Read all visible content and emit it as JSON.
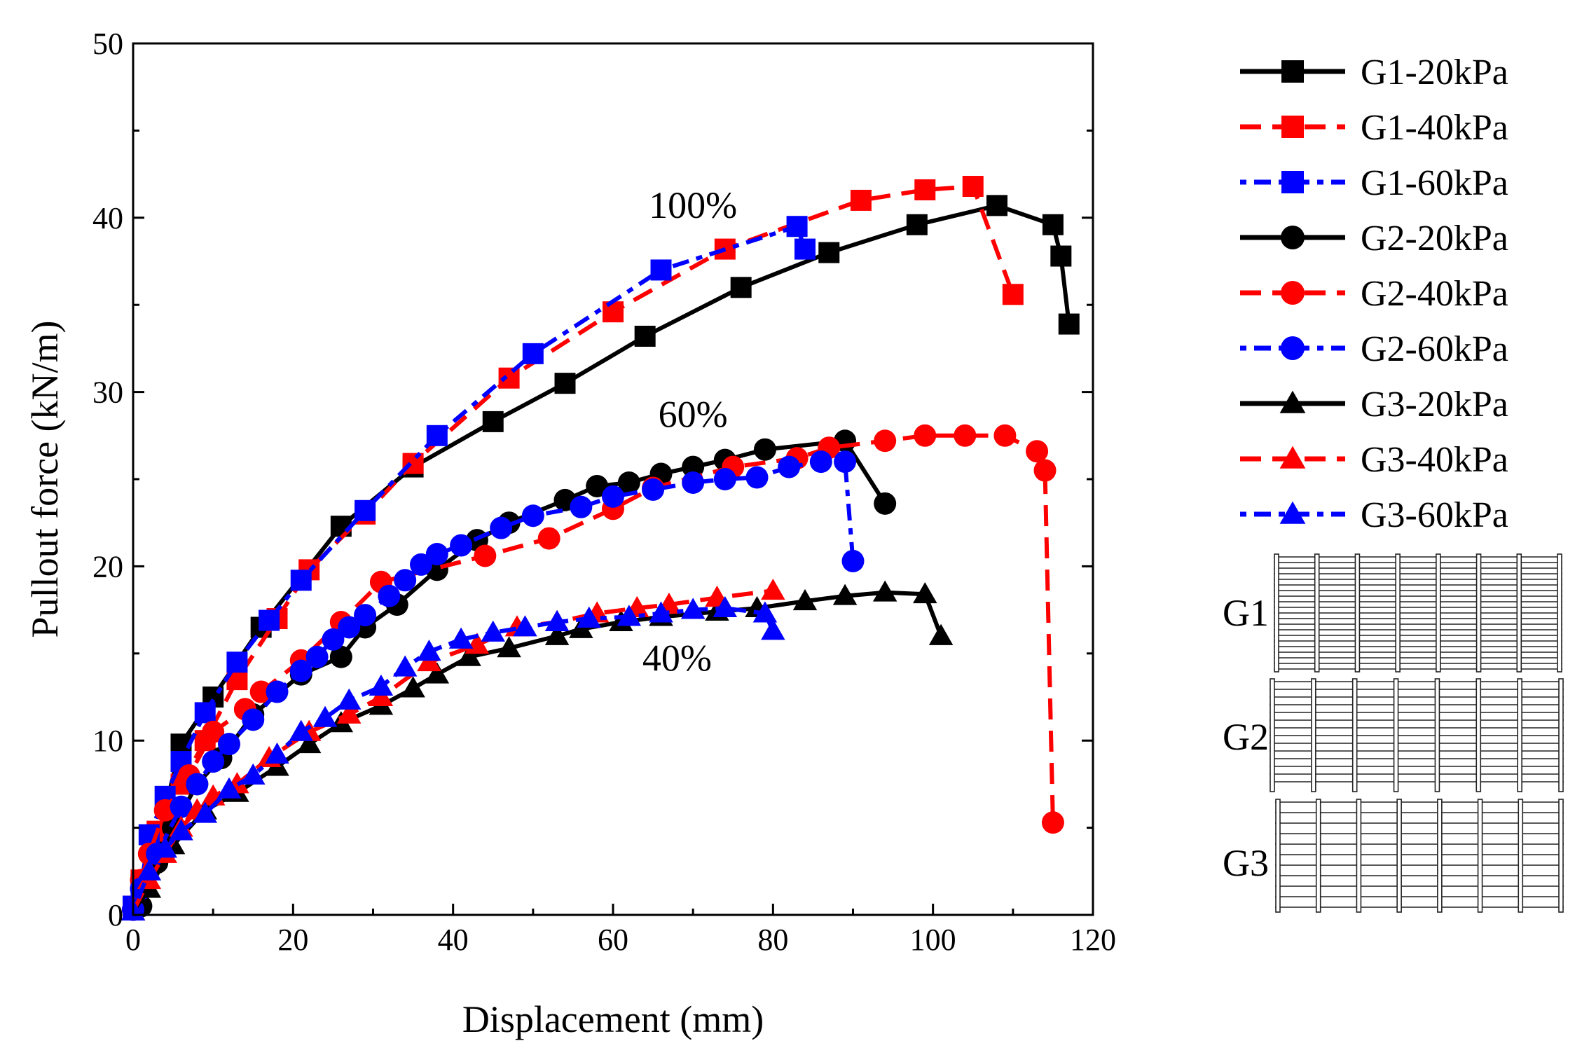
{
  "chart_data": {
    "type": "line",
    "xlabel": "Displacement (mm)",
    "ylabel": "Pullout force (kN/m)",
    "xlim": [
      0,
      120
    ],
    "ylim": [
      0,
      50
    ],
    "xticks": [
      0,
      20,
      40,
      60,
      80,
      100,
      120
    ],
    "yticks": [
      0,
      10,
      20,
      30,
      40,
      50
    ],
    "legend_position": "right",
    "annotations": [
      {
        "text": "100%",
        "x": 70,
        "y": 40
      },
      {
        "text": "60%",
        "x": 70,
        "y": 28
      },
      {
        "text": "40%",
        "x": 68,
        "y": 14
      }
    ],
    "series": [
      {
        "name": "G1-20kPa",
        "color": "#000000",
        "marker": "square",
        "line": "solid",
        "points": [
          [
            0,
            0.5
          ],
          [
            1,
            1.8
          ],
          [
            3,
            4.2
          ],
          [
            6,
            9.8
          ],
          [
            10,
            12.5
          ],
          [
            16,
            16.5
          ],
          [
            26,
            22.3
          ],
          [
            35,
            25.7
          ],
          [
            45,
            28.3
          ],
          [
            54,
            30.5
          ],
          [
            64,
            33.2
          ],
          [
            76,
            36
          ],
          [
            87,
            38
          ],
          [
            98,
            39.6
          ],
          [
            108,
            40.7
          ],
          [
            115,
            39.6
          ],
          [
            116,
            37.8
          ],
          [
            117,
            33.9
          ]
        ]
      },
      {
        "name": "G1-40kPa",
        "color": "#ff0000",
        "marker": "square",
        "line": "dashed",
        "points": [
          [
            0,
            0.5
          ],
          [
            1,
            2
          ],
          [
            3,
            4.8
          ],
          [
            6,
            7.5
          ],
          [
            9,
            10
          ],
          [
            13,
            13.5
          ],
          [
            18,
            17
          ],
          [
            22,
            19.8
          ],
          [
            29,
            23
          ],
          [
            35,
            25.9
          ],
          [
            47,
            30.8
          ],
          [
            60,
            34.6
          ],
          [
            74,
            38.2
          ],
          [
            91,
            41
          ],
          [
            99,
            41.6
          ],
          [
            105,
            41.8
          ],
          [
            110,
            35.6
          ]
        ]
      },
      {
        "name": "G1-60kPa",
        "color": "#0000ff",
        "marker": "square",
        "line": "dotted",
        "points": [
          [
            0,
            0.5
          ],
          [
            1,
            1.7
          ],
          [
            2,
            4.6
          ],
          [
            4,
            6.8
          ],
          [
            6,
            8.8
          ],
          [
            9,
            11.6
          ],
          [
            13,
            14.5
          ],
          [
            17,
            16.9
          ],
          [
            21,
            19.2
          ],
          [
            29,
            23.2
          ],
          [
            38,
            27.5
          ],
          [
            50,
            32.2
          ],
          [
            66,
            37
          ],
          [
            83,
            39.5
          ],
          [
            84,
            38.2
          ]
        ]
      },
      {
        "name": "G2-20kPa",
        "color": "#000000",
        "marker": "circle",
        "line": "solid",
        "points": [
          [
            0,
            0.3
          ],
          [
            1,
            0.5
          ],
          [
            3,
            3
          ],
          [
            5,
            5
          ],
          [
            8,
            7.5
          ],
          [
            11,
            9
          ],
          [
            15,
            11.5
          ],
          [
            21,
            13.8
          ],
          [
            26,
            14.8
          ],
          [
            29,
            16.5
          ],
          [
            33,
            17.8
          ],
          [
            38,
            19.8
          ],
          [
            43,
            21.5
          ],
          [
            47,
            22.5
          ],
          [
            54,
            23.8
          ],
          [
            58,
            24.6
          ],
          [
            62,
            24.8
          ],
          [
            66,
            25.3
          ],
          [
            70,
            25.7
          ],
          [
            74,
            26.1
          ],
          [
            79,
            26.7
          ],
          [
            89,
            27.2
          ],
          [
            94,
            23.6
          ]
        ]
      },
      {
        "name": "G2-40kPa",
        "color": "#ff0000",
        "marker": "circle",
        "line": "dashed",
        "points": [
          [
            0,
            0.3
          ],
          [
            1,
            2
          ],
          [
            2,
            3.5
          ],
          [
            4,
            6
          ],
          [
            7,
            8
          ],
          [
            10,
            10.5
          ],
          [
            14,
            11.8
          ],
          [
            16,
            12.8
          ],
          [
            21,
            14.6
          ],
          [
            26,
            16.8
          ],
          [
            31,
            19.1
          ],
          [
            44,
            20.6
          ],
          [
            52,
            21.6
          ],
          [
            60,
            23.3
          ],
          [
            65,
            24.5
          ],
          [
            75,
            25.7
          ],
          [
            83,
            26.2
          ],
          [
            87,
            26.8
          ],
          [
            94,
            27.2
          ],
          [
            99,
            27.5
          ],
          [
            104,
            27.5
          ],
          [
            109,
            27.5
          ],
          [
            113,
            26.6
          ],
          [
            114,
            25.5
          ],
          [
            115,
            5.3
          ]
        ]
      },
      {
        "name": "G2-60kPa",
        "color": "#0000ff",
        "marker": "circle",
        "line": "dotted",
        "points": [
          [
            0,
            0.3
          ],
          [
            1,
            1.5
          ],
          [
            3,
            3.5
          ],
          [
            6,
            6.2
          ],
          [
            8,
            7.5
          ],
          [
            10,
            8.8
          ],
          [
            12,
            9.8
          ],
          [
            15,
            11.2
          ],
          [
            18,
            12.8
          ],
          [
            21,
            14
          ],
          [
            23,
            14.8
          ],
          [
            25,
            15.8
          ],
          [
            27,
            16.5
          ],
          [
            29,
            17.2
          ],
          [
            32,
            18.3
          ],
          [
            34,
            19.2
          ],
          [
            36,
            20.1
          ],
          [
            38,
            20.7
          ],
          [
            41,
            21.2
          ],
          [
            46,
            22.2
          ],
          [
            50,
            22.9
          ],
          [
            56,
            23.4
          ],
          [
            60,
            24
          ],
          [
            65,
            24.4
          ],
          [
            70,
            24.8
          ],
          [
            74,
            25
          ],
          [
            78,
            25.1
          ],
          [
            82,
            25.7
          ],
          [
            86,
            26
          ],
          [
            89,
            26
          ],
          [
            90,
            20.3
          ]
        ]
      },
      {
        "name": "G3-20kPa",
        "color": "#000000",
        "marker": "triangle",
        "line": "solid",
        "points": [
          [
            0,
            0.2
          ],
          [
            2,
            1.5
          ],
          [
            5,
            4
          ],
          [
            9,
            6
          ],
          [
            13,
            7
          ],
          [
            18,
            8.5
          ],
          [
            22,
            9.8
          ],
          [
            26,
            11
          ],
          [
            31,
            12
          ],
          [
            35,
            13
          ],
          [
            38,
            13.8
          ],
          [
            42,
            14.8
          ],
          [
            47,
            15.3
          ],
          [
            53,
            16
          ],
          [
            56,
            16.4
          ],
          [
            61,
            16.8
          ],
          [
            66,
            17.1
          ],
          [
            73,
            17.4
          ],
          [
            78,
            17.6
          ],
          [
            84,
            18
          ],
          [
            89,
            18.3
          ],
          [
            94,
            18.5
          ],
          [
            99,
            18.4
          ],
          [
            101,
            16
          ]
        ]
      },
      {
        "name": "G3-40kPa",
        "color": "#ff0000",
        "marker": "triangle",
        "line": "dashed",
        "points": [
          [
            0,
            0.2
          ],
          [
            2,
            2
          ],
          [
            4,
            3.5
          ],
          [
            6,
            5
          ],
          [
            8,
            6
          ],
          [
            10,
            6.8
          ],
          [
            13,
            7.5
          ],
          [
            17,
            9
          ],
          [
            22,
            10.5
          ],
          [
            27,
            11.5
          ],
          [
            31,
            12.5
          ],
          [
            37,
            14.5
          ],
          [
            43,
            15.5
          ],
          [
            48,
            16.5
          ],
          [
            53,
            16.8
          ],
          [
            58,
            17.3
          ],
          [
            63,
            17.6
          ],
          [
            67,
            17.8
          ],
          [
            73,
            18.2
          ],
          [
            80,
            18.6
          ]
        ]
      },
      {
        "name": "G3-60kPa",
        "color": "#0000ff",
        "marker": "triangle",
        "line": "dotted",
        "points": [
          [
            0,
            0.2
          ],
          [
            2,
            2.5
          ],
          [
            4,
            3.8
          ],
          [
            6,
            4.8
          ],
          [
            9,
            5.8
          ],
          [
            12,
            7.2
          ],
          [
            15,
            8
          ],
          [
            18,
            9.2
          ],
          [
            21,
            10.5
          ],
          [
            24,
            11.3
          ],
          [
            27,
            12.3
          ],
          [
            31,
            13.1
          ],
          [
            34,
            14.2
          ],
          [
            37,
            15.1
          ],
          [
            41,
            15.8
          ],
          [
            45,
            16.2
          ],
          [
            49,
            16.5
          ],
          [
            53,
            16.8
          ],
          [
            57,
            17
          ],
          [
            62,
            17.1
          ],
          [
            66,
            17.3
          ],
          [
            70,
            17.5
          ],
          [
            74,
            17.6
          ],
          [
            79,
            17.3
          ],
          [
            80,
            16.3
          ]
        ]
      }
    ],
    "grid_samples": [
      {
        "label": "G1"
      },
      {
        "label": "G2"
      },
      {
        "label": "G3"
      }
    ]
  }
}
